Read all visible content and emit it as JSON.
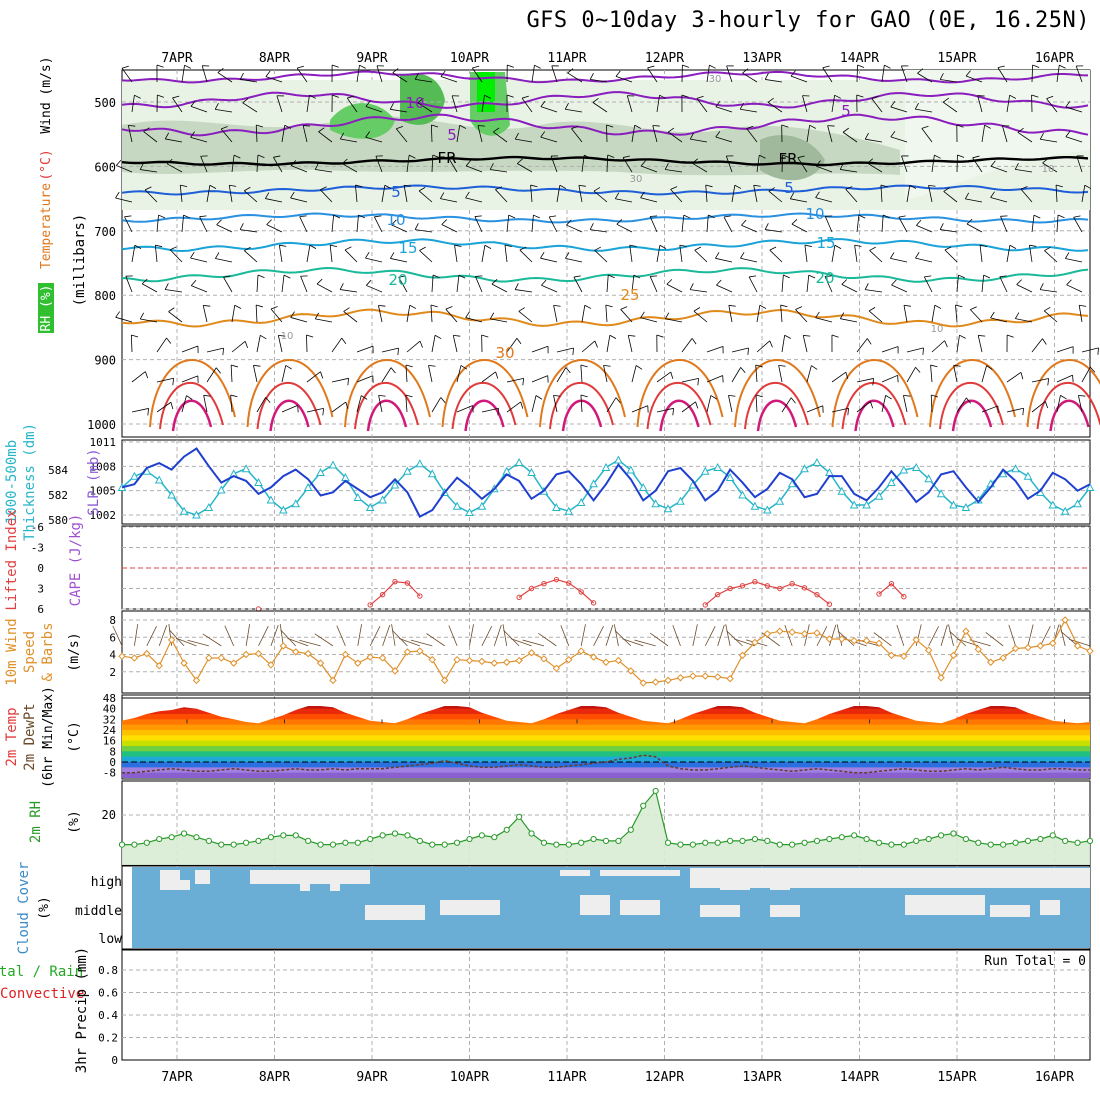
{
  "title": "GFS 0~10day 3-hourly for GAO (0E, 16.25N)",
  "days": [
    "7APR",
    "8APR",
    "9APR",
    "10APR",
    "11APR",
    "12APR",
    "13APR",
    "14APR",
    "15APR",
    "16APR"
  ],
  "colors": {
    "wind_violet": "#8a1dbd",
    "temp_blue": "#1e5fd8",
    "temp_cyan": "#1aa3d8",
    "temp_teal": "#19b99a",
    "temp_orange": "#e08a1c",
    "temp_red": "#e03a3a",
    "temp_magenta": "#d01a7a",
    "rh_green": "#2fbf2f",
    "slp": "#1f3fcf",
    "thick": "#26b5c8",
    "li": "#e04040",
    "cape": "#a050d0",
    "wind10": "#e0902a",
    "rh2m": "#2a9a2a",
    "cloud": "#6aaed6",
    "precip_total": "#22aa22",
    "precip_conv": "#dd2222"
  },
  "panel_upper": {
    "ylabel_parts": [
      "RH (%)",
      "Temperature",
      "(°C)",
      "Wind",
      "(m/s)"
    ],
    "ylabel2": "(millibars)",
    "levels": [
      "500",
      "600",
      "700",
      "800",
      "900",
      "1000"
    ],
    "contour_labels": [
      "10",
      "5",
      "FR",
      "5",
      "10",
      "15",
      "20",
      "25",
      "30",
      "FR",
      "5",
      "10",
      "15",
      "20",
      "5",
      "30",
      "30",
      "10",
      "10",
      "10"
    ]
  },
  "panel_slp": {
    "ylabel_left": [
      "1000-500mb",
      "Thickness (dm)"
    ],
    "ylabel_right": "SLP (mb)",
    "ticks_thick": [
      "584",
      "582",
      "580"
    ],
    "ticks_slp": [
      "1011",
      "1008",
      "1005",
      "1002"
    ]
  },
  "panel_li": {
    "ylabel_left": "Lifted Index",
    "ylabel_right": "CAPE (J/kg)",
    "ticks": [
      "-6",
      "-3",
      "0",
      "3",
      "6"
    ]
  },
  "panel_wind10": {
    "ylabel": [
      "10m Wind",
      "Speed",
      "& Barbs"
    ],
    "unit": "(m/s)",
    "ticks": [
      "8",
      "6",
      "4",
      "2"
    ]
  },
  "panel_temp2m": {
    "ylabel": [
      "2m Temp",
      "2m DewPt",
      "(6hr Min/Max)"
    ],
    "unit": "(°C)",
    "ticks": [
      "48",
      "40",
      "32",
      "24",
      "16",
      "8",
      "0",
      "-8"
    ]
  },
  "panel_rh2m": {
    "ylabel": "2m RH",
    "unit": "(%)",
    "ticks": [
      "20"
    ]
  },
  "panel_cloud": {
    "ylabel": "Cloud Cover",
    "unit": "(%)",
    "ticks": [
      "high",
      "middle",
      "low"
    ]
  },
  "panel_precip": {
    "ylabel_a": "Total / Rain",
    "ylabel_b": "Convective",
    "ylabel_c": "3hr Precip (mm)",
    "ticks": [
      "0.8",
      "0.6",
      "0.4",
      "0.2",
      "0"
    ],
    "run_total": "Run Total = 0"
  },
  "chart_data": [
    {
      "type": "line",
      "title": "1000-500mb Thickness (dm) / SLP (mb)",
      "series": [
        {
          "name": "1000-500mb Thickness (dm)",
          "values": [
            582.6,
            583.5,
            583.9,
            583.2,
            582.0,
            580.7,
            580.4,
            581.0,
            582.4,
            583.7,
            584.1,
            583.0,
            581.6,
            580.8,
            581.3,
            582.6,
            583.8,
            584.4,
            583.4,
            581.8,
            581.0,
            581.6,
            582.8,
            583.9,
            584.5,
            583.7,
            582.2,
            581.1,
            580.6,
            581.1,
            582.5,
            583.9,
            584.6,
            583.8,
            582.3,
            581.0,
            580.7,
            581.4,
            582.9,
            584.2,
            584.8,
            584.0,
            582.6,
            581.3,
            580.9,
            581.5,
            582.8,
            583.9,
            584.2,
            583.4,
            582.0,
            581.1,
            580.8,
            581.5,
            582.9,
            584.1,
            584.6,
            583.8,
            582.3,
            581.2,
            581.2,
            581.9,
            583.0,
            584.0,
            584.2,
            583.3,
            582.1,
            581.2,
            581.0,
            581.6,
            582.9,
            583.7,
            584.1,
            583.5,
            582.2,
            581.2,
            580.7,
            581.3,
            582.6
          ]
        },
        {
          "name": "SLP (mb)",
          "values": [
            1005.4,
            1005.8,
            1007.8,
            1008.4,
            1007.6,
            1009.2,
            1010.2,
            1008.0,
            1006.0,
            1006.8,
            1006.2,
            1004.6,
            1005.4,
            1006.8,
            1007.6,
            1006.4,
            1004.4,
            1004.8,
            1006.2,
            1005.2,
            1004.2,
            1004.8,
            1006.4,
            1004.8,
            1001.8,
            1002.6,
            1004.8,
            1006.6,
            1005.4,
            1004.0,
            1005.2,
            1007.0,
            1006.2,
            1004.0,
            1005.0,
            1007.0,
            1007.4,
            1005.8,
            1003.8,
            1005.8,
            1008.2,
            1006.4,
            1003.8,
            1005.0,
            1007.4,
            1007.8,
            1006.2,
            1003.8,
            1005.0,
            1007.6,
            1006.0,
            1004.2,
            1005.2,
            1007.2,
            1006.4,
            1004.2,
            1004.6,
            1006.8,
            1006.8,
            1004.6,
            1003.8,
            1005.4,
            1007.4,
            1005.6,
            1003.6,
            1004.8,
            1007.0,
            1007.4,
            1005.4,
            1003.6,
            1005.4,
            1007.6,
            1006.2,
            1004.0,
            1005.0,
            1007.2,
            1006.4,
            1005.0,
            1005.8
          ]
        }
      ]
    },
    {
      "type": "line",
      "title": "Lifted Index",
      "series": [
        {
          "name": "Lifted Index",
          "values": [
            null,
            null,
            null,
            null,
            null,
            null,
            null,
            null,
            null,
            null,
            null,
            6.0,
            null,
            null,
            null,
            null,
            null,
            null,
            null,
            null,
            5.4,
            3.9,
            2.0,
            2.2,
            4.1,
            null,
            null,
            null,
            null,
            null,
            null,
            null,
            4.3,
            3.0,
            2.3,
            1.7,
            2.2,
            3.5,
            5.1,
            null,
            null,
            null,
            null,
            null,
            null,
            null,
            null,
            5.4,
            3.9,
            3.0,
            2.6,
            2.0,
            2.6,
            3.0,
            2.3,
            2.9,
            3.9,
            5.3,
            null,
            null,
            null,
            3.8,
            2.3,
            4.2,
            null,
            null,
            null,
            null,
            null,
            null,
            null,
            null,
            null,
            null,
            null,
            null,
            null,
            null,
            null
          ]
        }
      ]
    },
    {
      "type": "line",
      "title": "10m Wind Speed (m/s)",
      "series": [
        {
          "name": "10m Wind Speed",
          "values": [
            3.8,
            3.6,
            4.1,
            2.7,
            5.7,
            3.0,
            1.0,
            3.6,
            3.6,
            3.0,
            4.0,
            4.1,
            2.8,
            5.0,
            4.3,
            4.1,
            3.0,
            1.0,
            4.0,
            3.0,
            3.7,
            3.6,
            2.1,
            4.3,
            4.4,
            3.4,
            1.0,
            3.4,
            3.3,
            3.2,
            3.0,
            3.1,
            3.3,
            4.2,
            3.5,
            2.4,
            3.4,
            4.4,
            3.7,
            3.1,
            3.3,
            2.1,
            0.7,
            0.8,
            1.0,
            1.3,
            1.5,
            1.5,
            1.4,
            1.2,
            3.9,
            5.4,
            6.4,
            6.7,
            6.6,
            6.4,
            6.5,
            5.8,
            5.8,
            5.6,
            5.6,
            5.3,
            3.9,
            3.8,
            5.7,
            4.5,
            1.3,
            3.9,
            6.7,
            4.6,
            3.1,
            3.6,
            4.7,
            4.8,
            5.0,
            5.3,
            8.0,
            5.0,
            4.4
          ]
        }
      ]
    },
    {
      "type": "area",
      "title": "2m Temp / 2m DewPt (°C)",
      "series": [
        {
          "name": "2m Temp",
          "values": [
            31,
            33,
            36,
            38,
            39,
            41,
            40,
            37,
            34,
            32,
            30,
            29,
            32,
            35,
            39,
            42,
            42,
            41,
            37,
            34,
            31,
            30,
            29,
            32,
            36,
            39,
            42,
            42,
            41,
            37,
            34,
            31,
            30,
            29,
            32,
            36,
            39,
            42,
            42,
            41,
            37,
            34,
            31,
            30,
            29,
            32,
            36,
            39,
            42,
            42,
            41,
            37,
            34,
            31,
            30,
            29,
            32,
            36,
            39,
            42,
            42,
            41,
            37,
            34,
            31,
            30,
            29,
            32,
            36,
            39,
            42,
            42,
            41,
            37,
            34,
            31,
            30,
            29,
            30
          ]
        },
        {
          "name": "2m DewPt",
          "values": [
            -8,
            -8,
            -7,
            -6,
            -5,
            -6,
            -7,
            -7,
            -6,
            -5,
            -6,
            -7,
            -7,
            -6,
            -5,
            -6,
            -6,
            -5,
            -6,
            -5,
            -5,
            -5,
            -4,
            -3,
            -2,
            -1,
            1,
            -1,
            -3,
            -4,
            -4,
            -3,
            -2,
            -3,
            -4,
            -4,
            -3,
            -2,
            -1,
            0,
            2,
            3,
            5,
            4,
            -3,
            -5,
            -6,
            -6,
            -5,
            -4,
            -3,
            -4,
            -5,
            -6,
            -7,
            -6,
            -5,
            -6,
            -7,
            -8,
            -8,
            -7,
            -6,
            -5,
            -6,
            -7,
            -7,
            -6,
            -5,
            -6,
            -5,
            -4,
            -5,
            -6,
            -6,
            -5,
            -5,
            -6,
            -6
          ]
        }
      ]
    },
    {
      "type": "area",
      "title": "2m RH (%)",
      "series": [
        {
          "name": "2m RH",
          "values": [
            4,
            4,
            5,
            7,
            8,
            10,
            8,
            6,
            4,
            4,
            5,
            6,
            8,
            9,
            9,
            6,
            4,
            4,
            5,
            5,
            7,
            9,
            10,
            9,
            6,
            4,
            4,
            5,
            7,
            9,
            8,
            12,
            19,
            10,
            5,
            4,
            4,
            5,
            7,
            6,
            6,
            12,
            25,
            33,
            5,
            4,
            4,
            5,
            5,
            6,
            6,
            7,
            6,
            4,
            4,
            5,
            6,
            7,
            8,
            9,
            7,
            5,
            4,
            4,
            6,
            7,
            9,
            10,
            7,
            5,
            4,
            4,
            5,
            6,
            7,
            9,
            6,
            5,
            6
          ]
        }
      ]
    },
    {
      "type": "area",
      "title": "3hr Precip (mm)",
      "series": [
        {
          "name": "3hr Precip",
          "values": [
            0,
            0,
            0,
            0,
            0,
            0,
            0,
            0,
            0,
            0
          ]
        }
      ],
      "ylim": [
        0,
        0.9
      ]
    }
  ]
}
